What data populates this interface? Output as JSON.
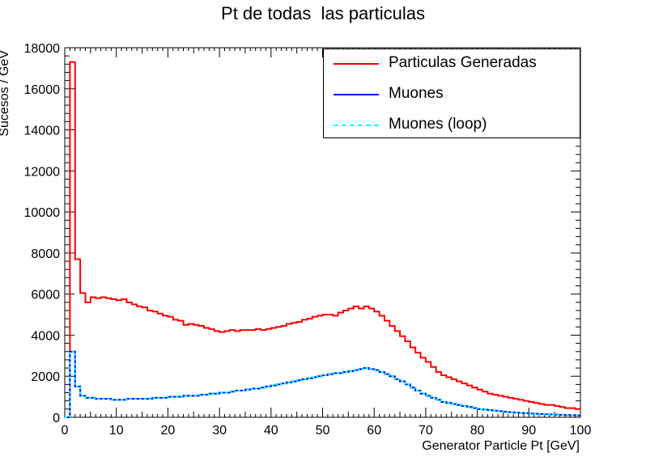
{
  "chart_data": {
    "type": "line",
    "title": "Pt de todas  las particulas",
    "xlabel": "Generator Particle Pt [GeV]",
    "ylabel": "Sucesos / GeV",
    "xlim": [
      0,
      100
    ],
    "ylim": [
      0,
      18000
    ],
    "x_ticks": [
      "0",
      "10",
      "20",
      "30",
      "40",
      "50",
      "60",
      "70",
      "80",
      "90",
      "100"
    ],
    "y_ticks": [
      "0",
      "2000",
      "4000",
      "6000",
      "8000",
      "10000",
      "12000",
      "14000",
      "16000",
      "18000"
    ],
    "bin_width": 1,
    "legend_position": "top-right",
    "series": [
      {
        "name": "Particulas Generadas",
        "color": "#ff0000",
        "style": "solid",
        "values": [
          0,
          17300,
          7700,
          6050,
          5600,
          5850,
          5800,
          5850,
          5800,
          5750,
          5700,
          5750,
          5600,
          5500,
          5400,
          5350,
          5200,
          5150,
          5050,
          4950,
          4900,
          4750,
          4700,
          4500,
          4550,
          4500,
          4450,
          4350,
          4300,
          4200,
          4150,
          4200,
          4250,
          4200,
          4250,
          4250,
          4250,
          4300,
          4250,
          4300,
          4350,
          4400,
          4450,
          4550,
          4600,
          4650,
          4750,
          4800,
          4900,
          4950,
          5000,
          5000,
          4950,
          5100,
          5200,
          5300,
          5400,
          5300,
          5400,
          5300,
          5150,
          4950,
          4700,
          4450,
          4200,
          3950,
          3700,
          3400,
          3150,
          2900,
          2700,
          2450,
          2200,
          2050,
          1950,
          1850,
          1750,
          1650,
          1550,
          1450,
          1350,
          1250,
          1150,
          1100,
          1050,
          1000,
          950,
          900,
          850,
          800,
          750,
          700,
          650,
          600,
          600,
          550,
          500,
          450,
          450,
          400
        ]
      },
      {
        "name": "Muones",
        "color": "#0000ff",
        "style": "solid",
        "values": [
          0,
          3200,
          1500,
          1050,
          950,
          950,
          900,
          900,
          900,
          850,
          850,
          850,
          900,
          900,
          900,
          900,
          900,
          950,
          950,
          950,
          1000,
          1000,
          1000,
          1050,
          1050,
          1050,
          1100,
          1100,
          1150,
          1150,
          1200,
          1200,
          1250,
          1300,
          1300,
          1350,
          1400,
          1400,
          1450,
          1500,
          1550,
          1600,
          1650,
          1700,
          1750,
          1800,
          1850,
          1900,
          1950,
          2000,
          2050,
          2100,
          2150,
          2150,
          2200,
          2250,
          2300,
          2350,
          2400,
          2350,
          2300,
          2200,
          2100,
          2000,
          1850,
          1750,
          1600,
          1450,
          1300,
          1150,
          1050,
          950,
          850,
          750,
          700,
          650,
          600,
          550,
          500,
          450,
          400,
          380,
          350,
          320,
          300,
          270,
          250,
          230,
          210,
          200,
          180,
          170,
          160,
          150,
          140,
          130,
          120,
          110,
          100,
          90
        ]
      },
      {
        "name": "Muones (loop)",
        "color": "#00ffff",
        "style": "dashed",
        "values": [
          0,
          3200,
          1500,
          1050,
          950,
          950,
          900,
          900,
          900,
          850,
          850,
          850,
          900,
          900,
          900,
          900,
          900,
          950,
          950,
          950,
          1000,
          1000,
          1000,
          1050,
          1050,
          1050,
          1100,
          1100,
          1150,
          1150,
          1200,
          1200,
          1250,
          1300,
          1300,
          1350,
          1400,
          1400,
          1450,
          1500,
          1550,
          1600,
          1650,
          1700,
          1750,
          1800,
          1850,
          1900,
          1950,
          2000,
          2050,
          2100,
          2150,
          2150,
          2200,
          2250,
          2300,
          2350,
          2400,
          2350,
          2300,
          2200,
          2100,
          2000,
          1850,
          1750,
          1600,
          1450,
          1300,
          1150,
          1050,
          950,
          850,
          750,
          700,
          650,
          600,
          550,
          500,
          450,
          400,
          380,
          350,
          320,
          300,
          270,
          250,
          230,
          210,
          200,
          180,
          170,
          160,
          150,
          140,
          130,
          120,
          110,
          100,
          90
        ]
      }
    ]
  }
}
